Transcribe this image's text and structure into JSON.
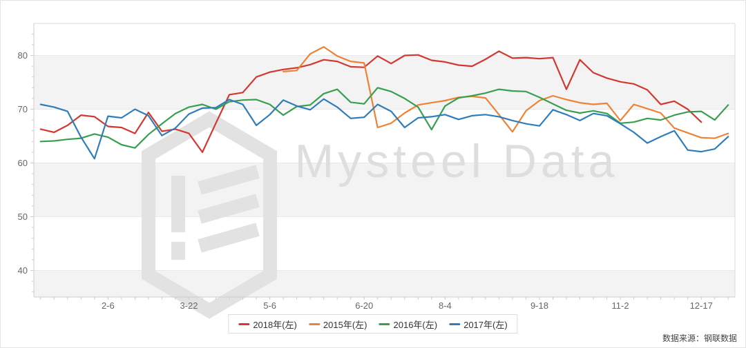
{
  "chart": {
    "watermark": "Mysteel Data",
    "source_note": "数据来源：钢联数据",
    "colors": {
      "band_fill": "#f3f3f3",
      "grid_line": "#e8e8e8",
      "axis_line": "#cccccc",
      "frame_line": "#dadada",
      "tick_label": "#666666",
      "watermark_gray": "#e2e2e2"
    },
    "chart_data": {
      "type": "line",
      "title": "",
      "xlabel": "",
      "ylabel": "",
      "n_points": 52,
      "x_tick_labels": [
        {
          "label": "2-6",
          "index": 5
        },
        {
          "label": "3-22",
          "index": 11
        },
        {
          "label": "5-6",
          "index": 17
        },
        {
          "label": "6-20",
          "index": 24
        },
        {
          "label": "8-4",
          "index": 30
        },
        {
          "label": "9-18",
          "index": 37
        },
        {
          "label": "11-2",
          "index": 43
        },
        {
          "label": "12-17",
          "index": 49
        }
      ],
      "yticks": [
        40,
        50,
        60,
        70,
        80
      ],
      "ylim": [
        35,
        86
      ],
      "grid": "horizontal",
      "split_area_alternating": true,
      "legend_position": "bottom",
      "series": [
        {
          "name": "2018年(左)",
          "color": "#d23730",
          "values": [
            66.3,
            65.7,
            67.0,
            68.9,
            68.6,
            66.8,
            66.6,
            65.5,
            69.4,
            65.9,
            66.3,
            65.5,
            62.0,
            67.4,
            72.7,
            73.1,
            76.0,
            76.9,
            77.4,
            77.7,
            78.3,
            79.2,
            78.9,
            77.9,
            77.8,
            79.9,
            78.5,
            80.0,
            80.1,
            79.1,
            78.8,
            78.2,
            78.0,
            79.3,
            80.8,
            79.5,
            79.6,
            79.4,
            79.6,
            73.7,
            79.2,
            76.8,
            75.8,
            75.1,
            74.7,
            73.6,
            70.9,
            71.5,
            70.0,
            67.6,
            null,
            null
          ]
        },
        {
          "name": "2015年(左)",
          "color": "#ee8234",
          "values": [
            null,
            null,
            null,
            null,
            null,
            null,
            null,
            null,
            null,
            null,
            null,
            null,
            null,
            null,
            null,
            null,
            null,
            null,
            77.0,
            77.2,
            80.3,
            81.6,
            79.9,
            78.9,
            78.6,
            66.6,
            67.4,
            69.3,
            70.8,
            71.2,
            71.6,
            72.2,
            72.4,
            72.1,
            69.0,
            65.8,
            69.7,
            71.6,
            72.5,
            71.8,
            71.2,
            70.9,
            71.1,
            67.9,
            70.9,
            70.1,
            69.3,
            66.5,
            65.6,
            64.7,
            64.6,
            65.5
          ]
        },
        {
          "name": "2016年(左)",
          "color": "#379f4e",
          "values": [
            64.0,
            64.1,
            64.4,
            64.6,
            65.4,
            64.8,
            63.4,
            62.8,
            65.3,
            67.3,
            69.2,
            70.4,
            70.9,
            70.0,
            71.4,
            71.7,
            71.8,
            70.9,
            68.9,
            70.5,
            70.8,
            72.9,
            73.7,
            71.3,
            71.0,
            74.0,
            73.3,
            72.0,
            70.4,
            66.2,
            70.6,
            72.1,
            72.5,
            73.0,
            73.7,
            73.4,
            73.3,
            72.2,
            71.0,
            69.8,
            69.3,
            69.7,
            69.2,
            67.4,
            67.6,
            68.3,
            68.0,
            68.9,
            69.5,
            69.6,
            68.0,
            70.8
          ]
        },
        {
          "name": "2017年(左)",
          "color": "#2f7cba",
          "values": [
            70.9,
            70.4,
            69.6,
            64.8,
            60.8,
            68.7,
            68.4,
            70.0,
            68.8,
            65.1,
            66.5,
            69.1,
            70.2,
            70.3,
            71.8,
            70.9,
            67.0,
            69.0,
            71.7,
            70.6,
            69.9,
            71.9,
            70.4,
            68.3,
            68.5,
            70.9,
            69.6,
            66.6,
            68.4,
            68.6,
            69.0,
            68.1,
            68.8,
            69.0,
            68.6,
            67.9,
            67.3,
            66.9,
            69.9,
            69.0,
            67.9,
            69.2,
            68.8,
            67.3,
            65.7,
            63.7,
            64.9,
            66.0,
            62.4,
            62.1,
            62.6,
            64.9
          ]
        }
      ]
    }
  }
}
